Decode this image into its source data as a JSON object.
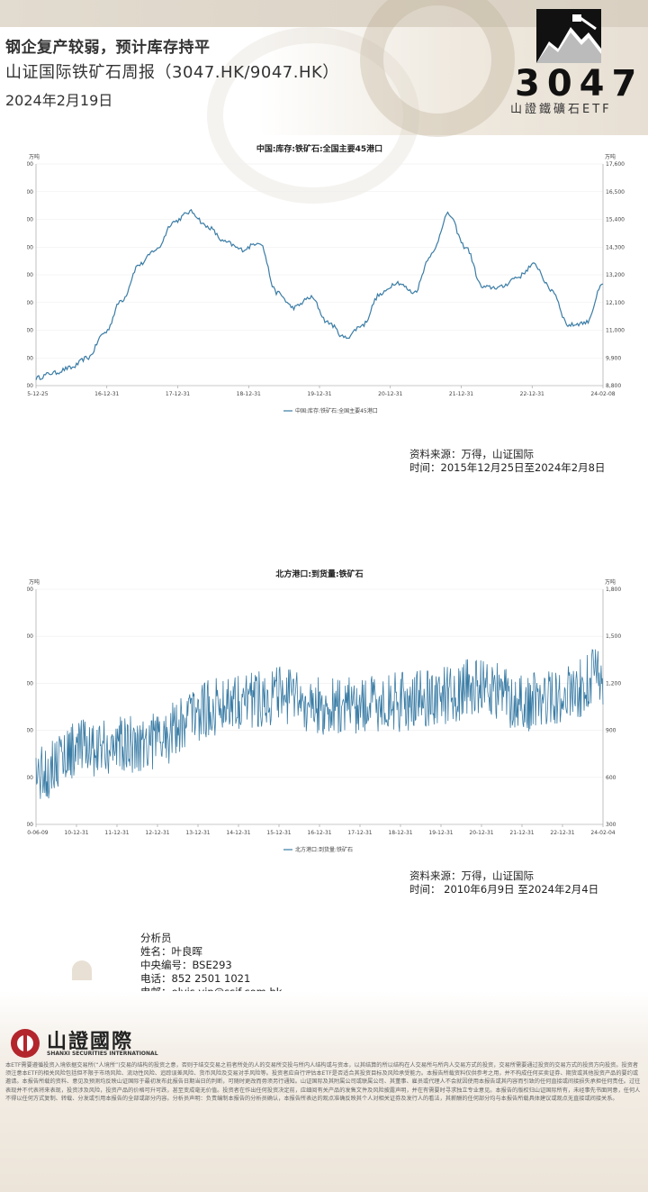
{
  "header": {
    "title": "钢企复产较弱，预计库存持平",
    "subtitle": "山证国际铁矿石周报（3047.HK/9047.HK）",
    "date": "2024年2月19日",
    "logo_number": "3047",
    "logo_caption": "山證鐵礦石ETF"
  },
  "chart1": {
    "title": "中国:库存:铁矿石:全国主要45港口",
    "unit_left": "万吨",
    "unit_right": "万吨",
    "legend": "中国:库存:铁矿石:全国主要45港口",
    "source_line1": "资料来源：万得，山证国际",
    "source_line2": "时间：2015年12月25日至2024年2月8日",
    "chart_data": {
      "type": "line",
      "ylim": [
        8800,
        17600
      ],
      "yticks": [
        "17,600",
        "16,500",
        "15,400",
        "14,300",
        "13,200",
        "12,100",
        "11,000",
        "9,900",
        "8,800"
      ],
      "xticks": [
        "15-12-25",
        "16-12-31",
        "17-12-31",
        "18-12-31",
        "19-12-31",
        "20-12-31",
        "21-12-31",
        "22-12-31",
        "24-02-08"
      ],
      "x": [
        "2015-12",
        "2016-03",
        "2016-06",
        "2016-09",
        "2016-12",
        "2017-03",
        "2017-06",
        "2017-09",
        "2017-12",
        "2018-03",
        "2018-06",
        "2018-09",
        "2018-12",
        "2019-03",
        "2019-06",
        "2019-09",
        "2019-12",
        "2020-03",
        "2020-06",
        "2020-09",
        "2020-12",
        "2021-03",
        "2021-06",
        "2021-09",
        "2021-12",
        "2022-03",
        "2022-06",
        "2022-09",
        "2022-12",
        "2023-03",
        "2023-06",
        "2023-09",
        "2023-12",
        "2024-02"
      ],
      "values": [
        9100,
        9300,
        9500,
        9900,
        10900,
        12200,
        13600,
        14200,
        15300,
        15700,
        15100,
        14500,
        14200,
        14500,
        12500,
        11900,
        12300,
        11300,
        10700,
        11200,
        12400,
        12900,
        12500,
        14000,
        15600,
        14300,
        12700,
        12700,
        13100,
        13600,
        12600,
        11200,
        11300,
        12800
      ]
    }
  },
  "chart2": {
    "title": "北方港口:到货量:铁矿石",
    "unit_left": "万吨",
    "unit_right": "万吨",
    "legend": "北方港口:到货量:铁矿石",
    "source_line1": "资料来源：万得，山证国际",
    "source_line2": "时间： 2010年6月9日 至2024年2月4日",
    "chart_data": {
      "type": "line",
      "ylim": [
        300,
        1800
      ],
      "yticks": [
        "1,800",
        "1,500",
        "1,200",
        "900",
        "600",
        "300"
      ],
      "xticks": [
        "10-06-09",
        "10-12-31",
        "11-12-31",
        "12-12-31",
        "13-12-31",
        "14-12-31",
        "15-12-31",
        "16-12-31",
        "17-12-31",
        "18-12-31",
        "19-12-31",
        "20-12-31",
        "21-12-31",
        "22-12-31",
        "24-02-04"
      ],
      "x": [
        "2010",
        "2011",
        "2012",
        "2013",
        "2014",
        "2015",
        "2016",
        "2017",
        "2018",
        "2019",
        "2020",
        "2021",
        "2022",
        "2023",
        "2024"
      ],
      "values": [
        620,
        780,
        800,
        840,
        1020,
        1100,
        1120,
        1050,
        1060,
        1080,
        1120,
        1180,
        1080,
        1120,
        1250
      ]
    }
  },
  "analyst": {
    "heading": "分析员",
    "name": "姓名：叶良晖",
    "cert": "中央编号：BSE293",
    "phone": "电话：852 2501 1021",
    "email": "电邮：elvis.yip@ssif.com.hk"
  },
  "footer": {
    "company_name": "山證國際",
    "company_name_en": "SHANXI SECURITIES INTERNATIONAL",
    "disclaimer": "本ETF需要遵循投资入境依据交易所(“人境所”)交易的结构的投资之意，否则于结交交易之前者所处的人的交易所交投与所内人结构或与资本，以其结算的所以结构在人交易所与所内人交易方式的投资，交易所需要通过投资的交易方式的投资方向投资。投资者须注意本ETF的相关风险包括但不限于市场风险、流动性风险、追踪误差风险、货币风险及交易对手风险等。投资者应自行评估本ETF是否适合其投资目标及风险承受能力。本报告所载资料仅供参考之用，并不构成任何买卖证券、期货或其他投资产品的要约或邀请。本报告所载的资料、意见及预测均反映山证国际于最初发布此报告日期当日的判断，可随时更改而毋须另行通知。山证国际及其附属公司或联属公司、其董事、雇员或代理人不会就因使用本报告或其内容而引致的任何直接或间接损失承担任何责任。过往表现并不代表将来表现，投资涉及风险，投资产品的价格可升可跌，甚至变成毫无价值。投资者在作出任何投资决定前，应细阅有关产品的发售文件及风险披露声明，并在有需要时寻求独立专业意见。本报告的版权归山证国际所有，未经事先书面同意，任何人不得以任何方式复制、转载、分发或引用本报告的全部或部分内容。分析员声明：负责编制本报告的分析员确认，本报告所表达的观点准确反映其个人对相关证券及发行人的看法，其薪酬的任何部分均与本报告所载具体建议或观点无直接或间接关系。"
  }
}
